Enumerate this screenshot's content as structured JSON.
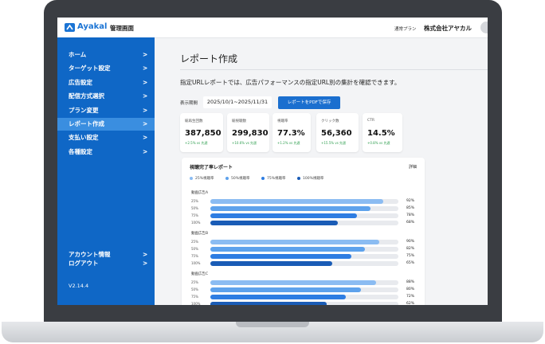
{
  "header": {
    "logo": "Ayakal",
    "title": "管理画面",
    "plan": "通常プラン",
    "company": "株式会社アヤカル"
  },
  "sidebar": {
    "items": [
      "ホーム",
      "ターゲット設定",
      "広告設定",
      "配信方式選択",
      "プラン変更",
      "レポート作成",
      "支払い設定",
      "各種設定"
    ],
    "active": 5,
    "bottom_items": [
      "アカウント情報",
      "ログアウト"
    ],
    "arrow": ">",
    "version": "V2.14.4"
  },
  "main": {
    "title": "レポート作成",
    "description": "指定URLレポートでは、広告パフォーマンスの指定URL別の集計を確認できます。",
    "period_label": "表示期間",
    "period": "2025/10/1~2025/11/31",
    "button": "レポートをPDFで保存"
  },
  "kpis": [
    {
      "label": "総再生回数",
      "value": "387,850",
      "change": "+2.5% vs 先週"
    },
    {
      "label": "総視聴数",
      "value": "299,830",
      "change": "+10.6% vs 先週"
    },
    {
      "label": "視聴率",
      "value": "77.3%",
      "change": "+1.2% vs 先週"
    },
    {
      "label": "クリック数",
      "value": "56,360",
      "change": "+15.5% vs 先週"
    },
    {
      "label": "CTR",
      "value": "14.5%",
      "change": "+0.8% vs 先週"
    }
  ],
  "report": {
    "type": "bar",
    "title": "視聴完了率レポート",
    "link": "詳細",
    "xlim": [
      0,
      100
    ],
    "series": [
      {
        "name": "25%視聴率",
        "label": "25%",
        "color": "#8bbcf2"
      },
      {
        "name": "50%視聴率",
        "label": "50%",
        "color": "#5ea2ec"
      },
      {
        "name": "75%視聴率",
        "label": "75%",
        "color": "#2e7de2"
      },
      {
        "name": "100%視聴率",
        "label": "100%",
        "color": "#1a5cb6"
      }
    ],
    "groups": [
      {
        "name": "動画広告A",
        "values": [
          92,
          85,
          78,
          68
        ],
        "value_labels": [
          "92%",
          "85%",
          "78%",
          "68%"
        ]
      },
      {
        "name": "動画広告B",
        "values": [
          90,
          82,
          75,
          65
        ],
        "value_labels": [
          "90%",
          "82%",
          "75%",
          "65%"
        ]
      },
      {
        "name": "動画広告C",
        "values": [
          88,
          80,
          72,
          62
        ],
        "value_labels": [
          "88%",
          "80%",
          "72%",
          "62%"
        ]
      }
    ]
  }
}
